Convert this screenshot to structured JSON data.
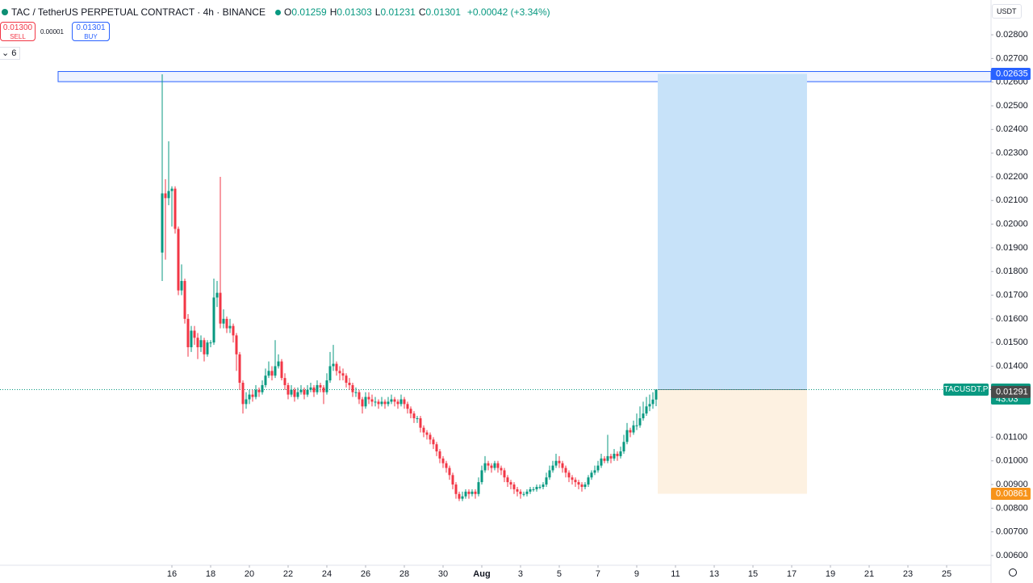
{
  "header": {
    "symbol": "TAC / TetherUS PERPETUAL CONTRACT · 4h · BINANCE",
    "ohlc": [
      {
        "key": "O",
        "value": 0.01259
      },
      {
        "key": "H",
        "value": 0.01303
      },
      {
        "key": "L",
        "value": 0.01231
      },
      {
        "key": "C",
        "value": 0.01301
      }
    ],
    "change": "+0.00042 (+3.34%)"
  },
  "toolbar": {
    "sell_price": "0.01300",
    "sell": "SELL",
    "spread": "0.00001",
    "buy_price": "0.01301",
    "buy": "BUY",
    "indicators": "6",
    "currency": "USDT"
  },
  "chart_data": {
    "type": "candlestick",
    "up_color": "#089981",
    "down_color": "#f23645",
    "xlim": [
      7.125,
      58.167
    ],
    "ylim": [
      0.00559,
      0.02947
    ],
    "xticks": [
      16,
      18,
      20,
      22,
      24,
      26,
      28,
      30,
      {
        "value": 32,
        "label": "Aug"
      },
      {
        "value": 34,
        "label": "3"
      },
      {
        "value": 36,
        "label": "5"
      },
      {
        "value": 38,
        "label": "7"
      },
      {
        "value": 40,
        "label": "9"
      },
      {
        "value": 42,
        "label": "11"
      },
      {
        "value": 44,
        "label": "13"
      },
      {
        "value": 46,
        "label": "15"
      },
      {
        "value": 48,
        "label": "17"
      },
      {
        "value": 50,
        "label": "19"
      },
      {
        "value": 52,
        "label": "21"
      },
      {
        "value": 54,
        "label": "23"
      },
      {
        "value": 56,
        "label": "25"
      }
    ],
    "yticks": [
      {
        "value": 0.028,
        "label": "0.02800"
      },
      {
        "value": 0.027,
        "label": "0.02700"
      },
      {
        "value": 0.026,
        "label": "0.02600"
      },
      {
        "value": 0.025,
        "label": "0.02500"
      },
      {
        "value": 0.024,
        "label": "0.02400"
      },
      {
        "value": 0.023,
        "label": "0.02300"
      },
      {
        "value": 0.022,
        "label": "0.02200"
      },
      {
        "value": 0.021,
        "label": "0.02100"
      },
      {
        "value": 0.02,
        "label": "0.02000"
      },
      {
        "value": 0.019,
        "label": "0.01900"
      },
      {
        "value": 0.018,
        "label": "0.01800"
      },
      {
        "value": 0.017,
        "label": "0.01700"
      },
      {
        "value": 0.016,
        "label": "0.01600"
      },
      {
        "value": 0.015,
        "label": "0.01500"
      },
      {
        "value": 0.014,
        "label": "0.01400"
      },
      {
        "value": 0.011,
        "label": "0.01100"
      },
      {
        "value": 0.01,
        "label": "0.01000"
      },
      {
        "value": 0.009,
        "label": "0.00900"
      },
      {
        "value": 0.008,
        "label": "0.00800"
      },
      {
        "value": 0.007,
        "label": "0.00700"
      },
      {
        "value": 0.006,
        "label": "0.00600"
      }
    ],
    "x": [
      15.5,
      15.667,
      15.833,
      16,
      16.167,
      16.333,
      16.5,
      16.667,
      16.833,
      17,
      17.167,
      17.333,
      17.5,
      17.667,
      17.833,
      18,
      18.167,
      18.333,
      18.5,
      18.667,
      18.833,
      19,
      19.167,
      19.333,
      19.5,
      19.667,
      19.833,
      20,
      20.167,
      20.333,
      20.5,
      20.667,
      20.833,
      21,
      21.167,
      21.333,
      21.5,
      21.667,
      21.833,
      22,
      22.167,
      22.333,
      22.5,
      22.667,
      22.833,
      23,
      23.167,
      23.333,
      23.5,
      23.667,
      23.833,
      24,
      24.167,
      24.333,
      24.5,
      24.667,
      24.833,
      25,
      25.167,
      25.333,
      25.5,
      25.667,
      25.833,
      26,
      26.167,
      26.333,
      26.5,
      26.667,
      26.833,
      27,
      27.167,
      27.333,
      27.5,
      27.667,
      27.833,
      28,
      28.167,
      28.333,
      28.5,
      28.667,
      28.833,
      29,
      29.167,
      29.333,
      29.5,
      29.667,
      29.833,
      30,
      30.167,
      30.333,
      30.5,
      30.667,
      30.833,
      31,
      31.167,
      31.333,
      31.5,
      31.667,
      31.833,
      32,
      32.167,
      32.333,
      32.5,
      32.667,
      32.833,
      33,
      33.167,
      33.333,
      33.5,
      33.667,
      33.833,
      34,
      34.167,
      34.333,
      34.5,
      34.667,
      34.833,
      35,
      35.167,
      35.333,
      35.5,
      35.667,
      35.833,
      36,
      36.167,
      36.333,
      36.5,
      36.667,
      36.833,
      37,
      37.167,
      37.333,
      37.5,
      37.667,
      37.833,
      38,
      38.167,
      38.333,
      38.5,
      38.667,
      38.833,
      39,
      39.167,
      39.333,
      39.5,
      39.667,
      39.833,
      40,
      40.167,
      40.333,
      40.5,
      40.667,
      40.833,
      41
    ],
    "open": [
      0.0188,
      0.0213,
      0.0211,
      0.0214,
      0.0215,
      0.0198,
      0.0172,
      0.0176,
      0.016,
      0.0148,
      0.0155,
      0.0152,
      0.0148,
      0.0151,
      0.0145,
      0.015,
      0.015,
      0.0169,
      0.0171,
      0.0158,
      0.016,
      0.0156,
      0.0157,
      0.0153,
      0.0145,
      0.0133,
      0.0124,
      0.0126,
      0.0128,
      0.0127,
      0.013,
      0.0129,
      0.0132,
      0.0136,
      0.0138,
      0.0136,
      0.014,
      0.0142,
      0.0135,
      0.0132,
      0.0128,
      0.013,
      0.0127,
      0.0129,
      0.013,
      0.0128,
      0.013,
      0.0131,
      0.0129,
      0.0132,
      0.0131,
      0.0129,
      0.0134,
      0.014,
      0.0141,
      0.0138,
      0.0137,
      0.0136,
      0.0133,
      0.0132,
      0.0129,
      0.0129,
      0.0126,
      0.0123,
      0.0127,
      0.0126,
      0.0125,
      0.0125,
      0.0124,
      0.0125,
      0.0124,
      0.0125,
      0.0126,
      0.0125,
      0.0124,
      0.0126,
      0.0124,
      0.0122,
      0.012,
      0.0118,
      0.0118,
      0.0114,
      0.0112,
      0.0111,
      0.0109,
      0.0107,
      0.0104,
      0.0101,
      0.0099,
      0.0097,
      0.0094,
      0.009,
      0.0086,
      0.0084,
      0.0085,
      0.0087,
      0.0086,
      0.0087,
      0.0086,
      0.0091,
      0.0096,
      0.0099,
      0.0098,
      0.0097,
      0.0099,
      0.0097,
      0.0096,
      0.0093,
      0.0091,
      0.009,
      0.0088,
      0.0087,
      0.0086,
      0.0086,
      0.0087,
      0.0088,
      0.0088,
      0.0089,
      0.0089,
      0.009,
      0.0093,
      0.0096,
      0.0098,
      0.01,
      0.0099,
      0.0097,
      0.0095,
      0.0093,
      0.0092,
      0.0091,
      0.009,
      0.0089,
      0.009,
      0.0093,
      0.0095,
      0.0096,
      0.0098,
      0.0101,
      0.01,
      0.0102,
      0.0101,
      0.0103,
      0.0102,
      0.0104,
      0.0108,
      0.0113,
      0.0112,
      0.0115,
      0.0115,
      0.0118,
      0.012,
      0.0123,
      0.0124,
      0.01259
    ],
    "high": [
      0.02633,
      0.0219,
      0.0235,
      0.0216,
      0.0216,
      0.0199,
      0.0183,
      0.0177,
      0.0162,
      0.0157,
      0.0157,
      0.0154,
      0.0153,
      0.0152,
      0.0151,
      0.0151,
      0.0177,
      0.0176,
      0.022,
      0.0164,
      0.0161,
      0.016,
      0.0158,
      0.0154,
      0.0146,
      0.0134,
      0.0129,
      0.013,
      0.013,
      0.0132,
      0.0131,
      0.0134,
      0.0139,
      0.0142,
      0.014,
      0.0151,
      0.0145,
      0.0143,
      0.0137,
      0.0133,
      0.0132,
      0.0131,
      0.0131,
      0.0132,
      0.0131,
      0.0132,
      0.0133,
      0.0132,
      0.0134,
      0.0133,
      0.0132,
      0.0137,
      0.0146,
      0.0149,
      0.0142,
      0.014,
      0.0139,
      0.0137,
      0.0135,
      0.0133,
      0.0131,
      0.013,
      0.0127,
      0.0129,
      0.0129,
      0.0128,
      0.0127,
      0.0126,
      0.0127,
      0.0126,
      0.0127,
      0.0128,
      0.0127,
      0.0126,
      0.0128,
      0.0127,
      0.0125,
      0.0123,
      0.0121,
      0.0119,
      0.0119,
      0.0115,
      0.0113,
      0.0112,
      0.011,
      0.0108,
      0.0105,
      0.0102,
      0.01,
      0.0098,
      0.0095,
      0.0091,
      0.0087,
      0.0087,
      0.0088,
      0.0088,
      0.0088,
      0.0088,
      0.0093,
      0.0098,
      0.0102,
      0.01,
      0.0099,
      0.01,
      0.01,
      0.0098,
      0.0097,
      0.0094,
      0.0092,
      0.0091,
      0.0089,
      0.0088,
      0.0087,
      0.0088,
      0.0089,
      0.0089,
      0.009,
      0.009,
      0.0091,
      0.0095,
      0.0098,
      0.01,
      0.0103,
      0.0102,
      0.01,
      0.0098,
      0.0096,
      0.0094,
      0.0093,
      0.0092,
      0.0091,
      0.0091,
      0.0094,
      0.0096,
      0.0098,
      0.01,
      0.0103,
      0.0102,
      0.0111,
      0.0103,
      0.0105,
      0.0104,
      0.0106,
      0.0111,
      0.0116,
      0.0114,
      0.0117,
      0.012,
      0.0123,
      0.0125,
      0.0127,
      0.0128,
      0.0129,
      0.01303
    ],
    "low": [
      0.0176,
      0.0185,
      0.0208,
      0.0199,
      0.0196,
      0.017,
      0.017,
      0.0158,
      0.0144,
      0.0146,
      0.0149,
      0.0143,
      0.0146,
      0.0142,
      0.0144,
      0.0148,
      0.0149,
      0.0165,
      0.0156,
      0.0156,
      0.0154,
      0.0154,
      0.015,
      0.0138,
      0.013,
      0.012,
      0.0122,
      0.0124,
      0.0125,
      0.0126,
      0.0127,
      0.0128,
      0.0131,
      0.0135,
      0.0134,
      0.0135,
      0.0139,
      0.0134,
      0.013,
      0.0126,
      0.0127,
      0.0125,
      0.0126,
      0.0128,
      0.0126,
      0.0127,
      0.0129,
      0.0127,
      0.0128,
      0.0129,
      0.0124,
      0.0128,
      0.0133,
      0.0138,
      0.0136,
      0.0134,
      0.0134,
      0.0131,
      0.013,
      0.0127,
      0.0127,
      0.0124,
      0.012,
      0.0122,
      0.0124,
      0.0123,
      0.0123,
      0.0122,
      0.0123,
      0.0122,
      0.0123,
      0.0124,
      0.0123,
      0.0122,
      0.0123,
      0.0122,
      0.012,
      0.0118,
      0.0116,
      0.0116,
      0.0112,
      0.011,
      0.0109,
      0.0107,
      0.0105,
      0.0102,
      0.0099,
      0.0097,
      0.0095,
      0.0092,
      0.0088,
      0.0084,
      0.0083,
      0.0083,
      0.0084,
      0.0084,
      0.0085,
      0.0084,
      0.0085,
      0.009,
      0.0095,
      0.0096,
      0.0095,
      0.0096,
      0.0095,
      0.0094,
      0.0091,
      0.0089,
      0.0088,
      0.0086,
      0.0085,
      0.0084,
      0.0085,
      0.0085,
      0.0086,
      0.0087,
      0.0087,
      0.0088,
      0.0088,
      0.0089,
      0.0092,
      0.0095,
      0.0097,
      0.0097,
      0.0095,
      0.0093,
      0.0091,
      0.009,
      0.0089,
      0.0088,
      0.0087,
      0.0088,
      0.0089,
      0.0092,
      0.0094,
      0.0095,
      0.0097,
      0.0099,
      0.0099,
      0.0099,
      0.01,
      0.01,
      0.0101,
      0.0103,
      0.0107,
      0.011,
      0.0111,
      0.0113,
      0.0114,
      0.0117,
      0.0119,
      0.0121,
      0.0122,
      0.01231
    ],
    "close": [
      0.0213,
      0.0211,
      0.0214,
      0.0215,
      0.0198,
      0.0172,
      0.0176,
      0.016,
      0.0148,
      0.0155,
      0.0152,
      0.0148,
      0.0151,
      0.0145,
      0.015,
      0.015,
      0.0169,
      0.0171,
      0.0158,
      0.016,
      0.0156,
      0.0157,
      0.0153,
      0.0145,
      0.0133,
      0.0124,
      0.0126,
      0.0128,
      0.0127,
      0.013,
      0.0129,
      0.0132,
      0.0136,
      0.0138,
      0.0136,
      0.014,
      0.0142,
      0.0135,
      0.0132,
      0.0128,
      0.013,
      0.0127,
      0.0129,
      0.013,
      0.0128,
      0.013,
      0.0131,
      0.0129,
      0.0132,
      0.0131,
      0.0129,
      0.0134,
      0.014,
      0.0141,
      0.0138,
      0.0137,
      0.0136,
      0.0133,
      0.0132,
      0.0129,
      0.0129,
      0.0126,
      0.0123,
      0.0127,
      0.0126,
      0.0125,
      0.0125,
      0.0124,
      0.0125,
      0.0124,
      0.0125,
      0.0126,
      0.0125,
      0.0124,
      0.0126,
      0.0124,
      0.0122,
      0.012,
      0.0118,
      0.0118,
      0.0114,
      0.0112,
      0.0111,
      0.0109,
      0.0107,
      0.0104,
      0.0101,
      0.0099,
      0.0097,
      0.0094,
      0.009,
      0.0086,
      0.0084,
      0.0085,
      0.0087,
      0.0086,
      0.0087,
      0.0086,
      0.0091,
      0.0096,
      0.0099,
      0.0098,
      0.0097,
      0.0099,
      0.0097,
      0.0096,
      0.0093,
      0.0091,
      0.009,
      0.0088,
      0.0087,
      0.0086,
      0.0086,
      0.0087,
      0.0088,
      0.0088,
      0.0089,
      0.0089,
      0.009,
      0.0093,
      0.0096,
      0.0098,
      0.01,
      0.0099,
      0.0097,
      0.0095,
      0.0093,
      0.0092,
      0.0091,
      0.009,
      0.0089,
      0.009,
      0.0093,
      0.0095,
      0.0096,
      0.0098,
      0.0101,
      0.01,
      0.0102,
      0.0101,
      0.0103,
      0.0102,
      0.0104,
      0.0108,
      0.0113,
      0.0112,
      0.0115,
      0.0115,
      0.0118,
      0.012,
      0.0123,
      0.0124,
      0.01259,
      0.01301
    ],
    "zone": {
      "top": 0.02645,
      "bottom": 0.02602,
      "x_start": 10.125,
      "color": "#2962ff"
    },
    "position": {
      "entry": 0.01301,
      "target": 0.02635,
      "stop": 0.00861,
      "x_start": 41.083,
      "x_end": 48.79,
      "target_color": "#c7e2f9",
      "stop_color": "#fdf1e1"
    },
    "last_price": {
      "value": 0.01301,
      "symbol": "TACUSDT.P",
      "countdown": "43:03",
      "color": "#089981"
    },
    "price_labels": [
      {
        "value": 0.02635,
        "color": "#2962ff"
      },
      {
        "value": 0.01291,
        "color": "#4a4a4a"
      },
      {
        "value": 0.00861,
        "color": "#f7931a"
      }
    ]
  }
}
